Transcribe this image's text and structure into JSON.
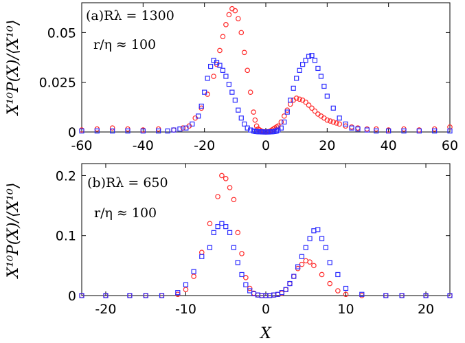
{
  "chart_data": [
    {
      "type": "scatter",
      "panel": "(a)",
      "annotations": [
        "(a)Rλ = 1300",
        "r/η ≈ 100"
      ],
      "ylabel": "X¹⁰P(X)/⟨X¹⁰⟩",
      "xlabel": "",
      "xlim": [
        -60,
        60
      ],
      "ylim": [
        0,
        0.065
      ],
      "xticks": [
        -60,
        -40,
        -20,
        0,
        20,
        40,
        60
      ],
      "yticks": [
        0,
        0.025,
        0.05
      ],
      "ytick_labels": [
        "0",
        "0.025",
        "0.05"
      ],
      "series": [
        {
          "marker": "circle",
          "color": "#ff2a2a",
          "x": [
            -60,
            -55,
            -50,
            -45,
            -40,
            -35,
            -30,
            -27,
            -25,
            -23,
            -21,
            -19,
            -17,
            -16,
            -15,
            -14,
            -13,
            -12,
            -11,
            -10,
            -9,
            -8,
            -7,
            -6,
            -5,
            -4,
            -3.5,
            -3,
            -2.5,
            -2,
            -1.5,
            -1,
            -0.5,
            0,
            0.5,
            1,
            1.5,
            2,
            2.5,
            3,
            3.5,
            4,
            5,
            6,
            7,
            8,
            9,
            10,
            11,
            12,
            13,
            14,
            15,
            16,
            17,
            18,
            19,
            20,
            21,
            22,
            23,
            24,
            26,
            28,
            30,
            33,
            36,
            40,
            45,
            50,
            55,
            60
          ],
          "y": [
            0.001,
            0.0015,
            0.002,
            0.0015,
            0.001,
            0.0015,
            0.001,
            0.002,
            0.003,
            0.007,
            0.012,
            0.019,
            0.028,
            0.034,
            0.041,
            0.048,
            0.054,
            0.059,
            0.062,
            0.061,
            0.057,
            0.05,
            0.04,
            0.031,
            0.02,
            0.01,
            0.006,
            0.003,
            0.0015,
            0.001,
            0.0005,
            0.0002,
            0.0001,
            0,
            0.0001,
            0.0002,
            0.0005,
            0.001,
            0.0015,
            0.002,
            0.0025,
            0.003,
            0.005,
            0.008,
            0.011,
            0.014,
            0.016,
            0.017,
            0.0165,
            0.016,
            0.015,
            0.0135,
            0.012,
            0.0105,
            0.009,
            0.008,
            0.007,
            0.006,
            0.0055,
            0.005,
            0.0045,
            0.004,
            0.003,
            0.0025,
            0.002,
            0.0015,
            0.0015,
            0.001,
            0.0015,
            0.001,
            0.0015,
            0.0025
          ]
        },
        {
          "marker": "square",
          "color": "#2a2aff",
          "x": [
            -60,
            -55,
            -50,
            -45,
            -40,
            -35,
            -32,
            -30,
            -28,
            -26,
            -24,
            -22,
            -21,
            -20,
            -19,
            -18,
            -17,
            -16,
            -15,
            -14,
            -13,
            -12,
            -11,
            -10,
            -9,
            -8,
            -7,
            -6,
            -5,
            -4,
            -3.5,
            -3,
            -2.5,
            -2,
            -1.5,
            -1,
            -0.5,
            0,
            0.5,
            1,
            1.5,
            2,
            2.5,
            3,
            3.5,
            4,
            5,
            6,
            7,
            8,
            9,
            10,
            11,
            12,
            13,
            14,
            15,
            16,
            17,
            18,
            19,
            20,
            22,
            24,
            26,
            28,
            30,
            33,
            36,
            40,
            45,
            50,
            55,
            60
          ],
          "y": [
            0.0005,
            0.0005,
            0.0005,
            0.0005,
            0.0005,
            0.0005,
            0.0005,
            0.001,
            0.0015,
            0.002,
            0.004,
            0.008,
            0.013,
            0.02,
            0.027,
            0.033,
            0.036,
            0.035,
            0.0335,
            0.031,
            0.028,
            0.024,
            0.02,
            0.016,
            0.011,
            0.007,
            0.004,
            0.002,
            0.001,
            0.0005,
            0.0003,
            0.0002,
            0.0001,
            0.0001,
            0.0001,
            0,
            0,
            0,
            0,
            0,
            0.0001,
            0.0001,
            0.0002,
            0.0003,
            0.0005,
            0.001,
            0.002,
            0.005,
            0.01,
            0.016,
            0.022,
            0.027,
            0.031,
            0.034,
            0.036,
            0.038,
            0.0385,
            0.036,
            0.032,
            0.028,
            0.023,
            0.018,
            0.012,
            0.007,
            0.004,
            0.002,
            0.0015,
            0.001,
            0.0005,
            0.0005,
            0.0005,
            0.0005,
            0.0005,
            0.0005
          ]
        }
      ]
    },
    {
      "type": "scatter",
      "panel": "(b)",
      "annotations": [
        "(b)Rλ = 650",
        "r/η ≈ 100"
      ],
      "ylabel": "X¹⁰P(X)/⟨X¹⁰⟩",
      "xlabel": "X",
      "xlim": [
        -23,
        23
      ],
      "ylim": [
        0,
        0.22
      ],
      "xticks": [
        -20,
        -10,
        0,
        10,
        20
      ],
      "yticks": [
        0,
        0.1,
        0.2
      ],
      "ytick_labels": [
        "0",
        "0.1",
        "0.2"
      ],
      "series": [
        {
          "marker": "circle",
          "color": "#ff2a2a",
          "x": [
            -23,
            -20,
            -17,
            -15,
            -13,
            -11,
            -10,
            -9,
            -8,
            -7,
            -6,
            -5.5,
            -5,
            -4.5,
            -4,
            -3.5,
            -3,
            -2.5,
            -2,
            -1.5,
            -1,
            -0.5,
            0,
            0.5,
            1,
            1.5,
            2,
            2.5,
            3,
            3.5,
            4,
            4.5,
            5,
            5.5,
            6,
            7,
            8,
            9,
            10,
            12,
            15,
            17,
            20,
            23
          ],
          "y": [
            0,
            0,
            0,
            0,
            0,
            0.002,
            0.01,
            0.032,
            0.072,
            0.12,
            0.165,
            0.2,
            0.195,
            0.18,
            0.16,
            0.105,
            0.07,
            0.03,
            0.012,
            0.004,
            0.001,
            0,
            0,
            0,
            0.001,
            0.002,
            0.004,
            0.01,
            0.02,
            0.032,
            0.045,
            0.052,
            0.058,
            0.056,
            0.05,
            0.035,
            0.02,
            0.008,
            0.002,
            0,
            0,
            0,
            0,
            0
          ]
        },
        {
          "marker": "square",
          "color": "#2a2aff",
          "x": [
            -23,
            -20,
            -17,
            -15,
            -13,
            -11,
            -10,
            -9,
            -8,
            -7,
            -6.5,
            -6,
            -5.5,
            -5,
            -4.5,
            -4,
            -3.5,
            -3,
            -2.5,
            -2,
            -1.5,
            -1,
            -0.5,
            0,
            0.5,
            1,
            1.5,
            2,
            2.5,
            3,
            3.5,
            4,
            4.5,
            5,
            5.5,
            6,
            6.5,
            7,
            7.5,
            8,
            9,
            10,
            12,
            15,
            17,
            20,
            23
          ],
          "y": [
            0,
            0,
            0,
            0,
            0,
            0.005,
            0.018,
            0.04,
            0.065,
            0.08,
            0.105,
            0.115,
            0.12,
            0.115,
            0.105,
            0.08,
            0.055,
            0.035,
            0.018,
            0.008,
            0.003,
            0.001,
            0,
            0,
            0,
            0.001,
            0.002,
            0.005,
            0.01,
            0.02,
            0.032,
            0.048,
            0.065,
            0.08,
            0.095,
            0.108,
            0.11,
            0.095,
            0.08,
            0.055,
            0.035,
            0.012,
            0.002,
            0,
            0,
            0,
            0
          ]
        }
      ]
    }
  ]
}
